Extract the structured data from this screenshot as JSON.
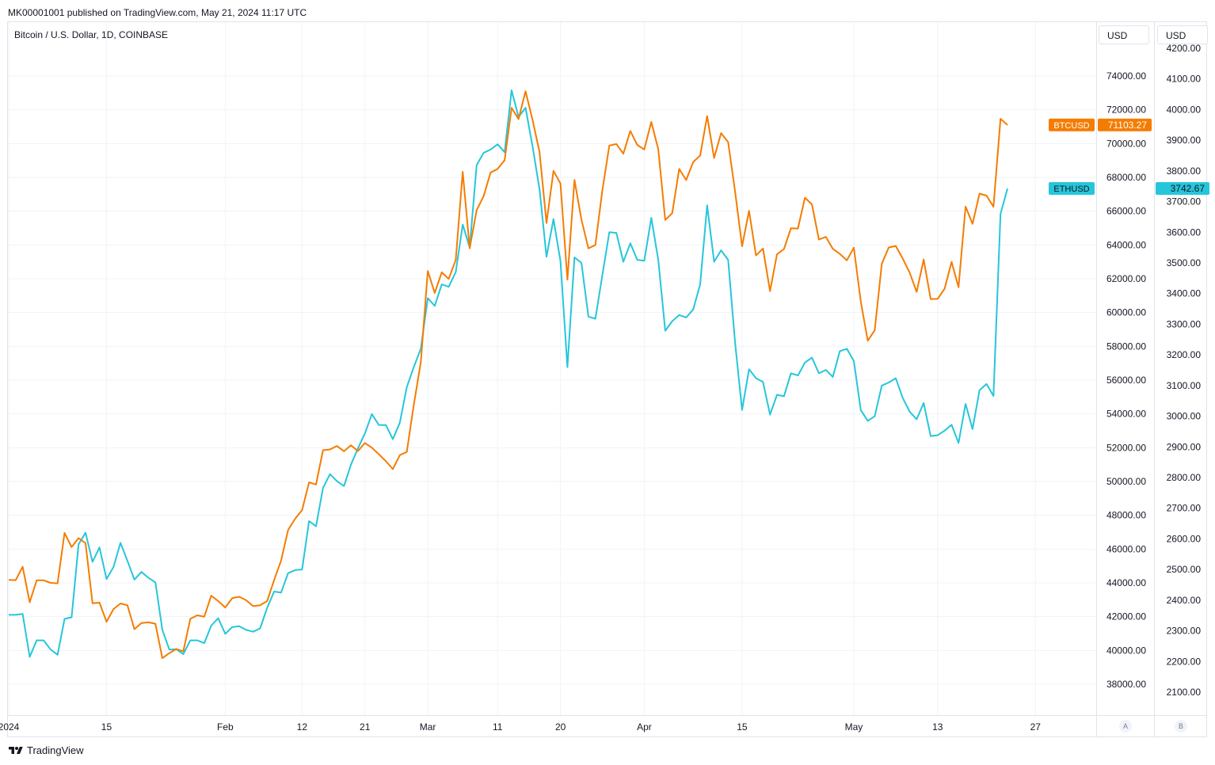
{
  "header": {
    "published": "MK00001001 published on TradingView.com, May 21, 2024 11:17 UTC",
    "symbol": "Bitcoin / U.S. Dollar, 1D, COINBASE"
  },
  "scales": {
    "left_unit": "USD",
    "right_unit": "USD",
    "left_button": "A",
    "right_button": "B"
  },
  "footer": {
    "brand": "TradingView"
  },
  "colors": {
    "btc": "#f57c00",
    "eth": "#26c6da",
    "grid": "#f0f3fa",
    "axis_text": "#131722"
  },
  "chart_data": {
    "type": "line",
    "x_tick_labels": [
      "2024",
      "15",
      "Feb",
      "12",
      "21",
      "Mar",
      "11",
      "20",
      "Apr",
      "15",
      "May",
      "13",
      "27"
    ],
    "x_tick_day_index": [
      0,
      14,
      31,
      42,
      51,
      60,
      70,
      79,
      91,
      105,
      121,
      133,
      147
    ],
    "axis_btc": {
      "unit": "USD",
      "ylim": [
        36200,
        77000
      ],
      "ticks": [
        38000,
        40000,
        42000,
        44000,
        46000,
        48000,
        50000,
        52000,
        54000,
        56000,
        58000,
        60000,
        62000,
        64000,
        66000,
        68000,
        70000,
        72000,
        74000
      ]
    },
    "axis_eth": {
      "unit": "USD",
      "ylim": [
        2030,
        4230
      ],
      "ticks": [
        2100,
        2200,
        2300,
        2400,
        2500,
        2600,
        2700,
        2800,
        2900,
        3000,
        3100,
        3200,
        3300,
        3400,
        3500,
        3600,
        3700,
        3800,
        3900,
        4000,
        4100,
        4200
      ]
    },
    "series": [
      {
        "name": "BTCUSD",
        "axis": "btc",
        "last_value": "71103.27",
        "values": [
          44180,
          44160,
          44950,
          42850,
          44150,
          44150,
          44000,
          43970,
          46960,
          46120,
          46650,
          46350,
          42790,
          42830,
          41700,
          42450,
          42780,
          42670,
          41260,
          41620,
          41660,
          41580,
          39540,
          39840,
          40080,
          39950,
          41870,
          42080,
          42000,
          43240,
          42920,
          42540,
          43090,
          43180,
          42970,
          42620,
          42680,
          42920,
          44170,
          45320,
          47120,
          47790,
          48310,
          49950,
          49820,
          51850,
          51900,
          52100,
          51790,
          52140,
          51800,
          52280,
          52000,
          51610,
          51200,
          50730,
          51560,
          51750,
          54530,
          57060,
          62460,
          61160,
          62380,
          61990,
          63110,
          68330,
          63800,
          66060,
          66890,
          68290,
          68500,
          69020,
          72120,
          71450,
          73100,
          71400,
          69500,
          65300,
          68390,
          67640,
          61950,
          67850,
          65500,
          63800,
          64000,
          67230,
          69880,
          69980,
          69400,
          70750,
          69920,
          69650,
          71280,
          69670,
          65480,
          65880,
          68500,
          67840,
          68910,
          69300,
          71630,
          69150,
          70620,
          70090,
          67160,
          63920,
          66020,
          63380,
          63790,
          61270,
          63450,
          63760,
          64990,
          64970,
          66800,
          66400,
          64320,
          64480,
          63770,
          63470,
          63090,
          63840,
          60650,
          58330,
          58960,
          62880,
          63850,
          63940,
          63200,
          62360,
          61220,
          63140,
          60800,
          60810,
          61410,
          63000,
          61500,
          66270,
          65250,
          67040,
          66920,
          66260,
          71470,
          71103.27
        ]
      },
      {
        "name": "ETHUSD",
        "axis": "eth",
        "last_value": "3742.67",
        "values": [
          2352,
          2352,
          2355,
          2215,
          2269,
          2269,
          2239,
          2222,
          2339,
          2344,
          2582,
          2620,
          2525,
          2572,
          2469,
          2508,
          2587,
          2528,
          2467,
          2492,
          2473,
          2458,
          2303,
          2239,
          2240,
          2224,
          2269,
          2269,
          2260,
          2317,
          2341,
          2290,
          2312,
          2315,
          2303,
          2297,
          2308,
          2375,
          2428,
          2425,
          2488,
          2498,
          2500,
          2658,
          2641,
          2766,
          2811,
          2788,
          2772,
          2842,
          2895,
          2944,
          3007,
          2971,
          2971,
          2925,
          2979,
          3095,
          3160,
          3220,
          3385,
          3360,
          3430,
          3422,
          3470,
          3625,
          3550,
          3819,
          3859,
          3870,
          3887,
          3861,
          4063,
          3976,
          4006,
          3880,
          3740,
          3520,
          3643,
          3506,
          3160,
          3518,
          3500,
          3325,
          3318,
          3460,
          3600,
          3598,
          3504,
          3564,
          3510,
          3507,
          3647,
          3510,
          3279,
          3310,
          3330,
          3322,
          3348,
          3430,
          3688,
          3504,
          3541,
          3510,
          3240,
          3020,
          3153,
          3124,
          3112,
          3005,
          3070,
          3065,
          3140,
          3133,
          3175,
          3191,
          3140,
          3151,
          3128,
          3212,
          3220,
          3180,
          3020,
          2985,
          3000,
          3100,
          3110,
          3124,
          3060,
          3015,
          2990,
          3043,
          2935,
          2938,
          2953,
          2972,
          2913,
          3040,
          2958,
          3085,
          3105,
          3066,
          3660,
          3742.67
        ]
      }
    ]
  }
}
